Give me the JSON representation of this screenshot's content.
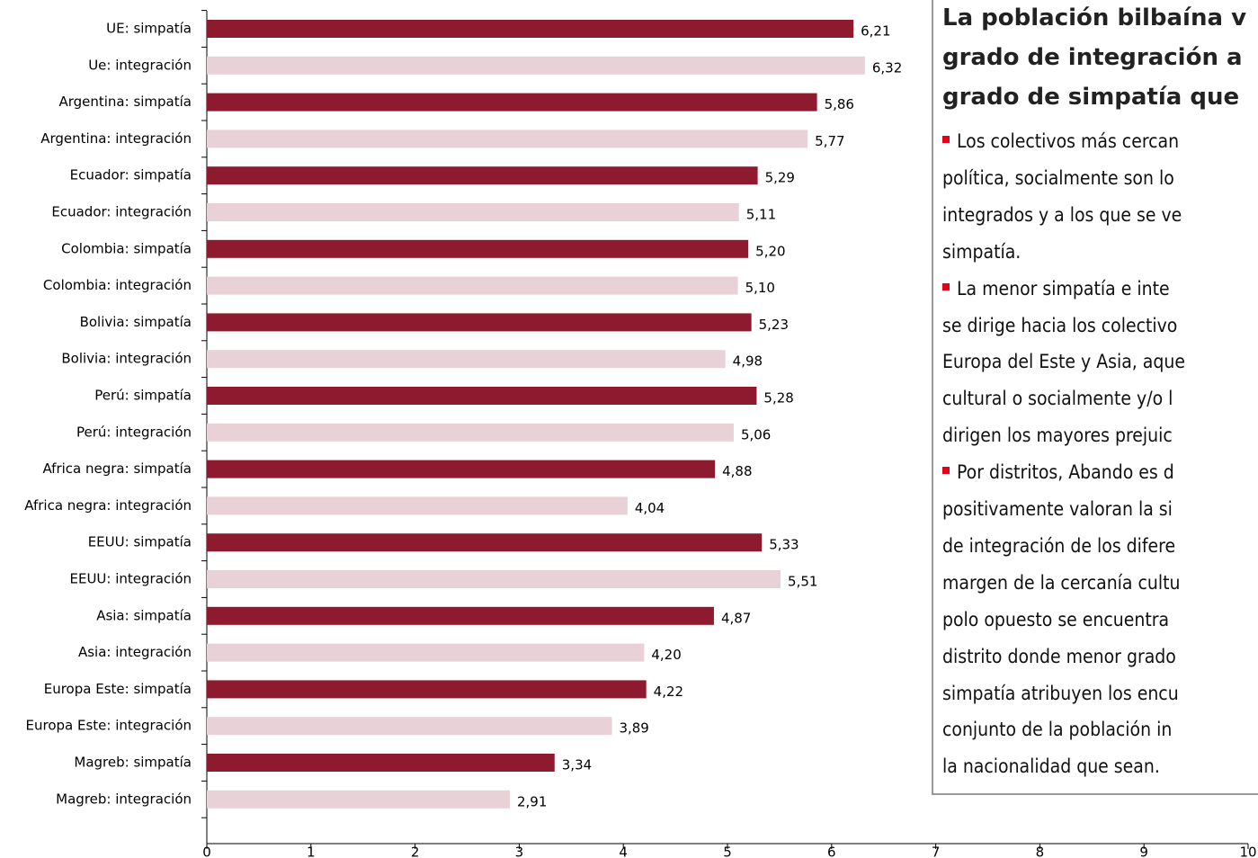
{
  "chart_data": {
    "type": "bar",
    "orientation": "horizontal",
    "categories": [
      "UE: simpatía",
      "Ue: integración",
      "Argentina: simpatía",
      "Argentina: integración",
      "Ecuador: simpatía",
      "Ecuador: integración",
      "Colombia: simpatía",
      "Colombia: integración",
      "Bolivia: simpatía",
      "Bolivia: integración",
      "Perú: simpatía",
      "Perú: integración",
      "Africa negra: simpatía",
      "Africa negra: integración",
      "EEUU: simpatía",
      "EEUU: integración",
      "Asia: simpatía",
      "Asia: integración",
      "Europa Este: simpatía",
      "Europa Este: integración",
      "Magreb: simpatía",
      "Magreb: integración"
    ],
    "values": [
      6.21,
      6.32,
      5.86,
      5.77,
      5.29,
      5.11,
      5.2,
      5.1,
      5.23,
      4.98,
      5.28,
      5.06,
      4.88,
      4.04,
      5.33,
      5.51,
      4.87,
      4.2,
      4.22,
      3.89,
      3.34,
      2.91
    ],
    "value_labels": [
      "6,21",
      "6,32",
      "5,86",
      "5,77",
      "5,29",
      "5,11",
      "5,20",
      "5,10",
      "5,23",
      "4,98",
      "5,28",
      "5,06",
      "4,88",
      "4,04",
      "5,33",
      "5,51",
      "4,87",
      "4,20",
      "4,22",
      "3,89",
      "3,34",
      "2,91"
    ],
    "colors": [
      "#8e1a2f",
      "#e9d2d7"
    ],
    "xlim": [
      0,
      10
    ],
    "xticks": [
      0,
      1,
      2,
      3,
      4,
      5,
      6,
      7,
      8,
      9,
      10
    ]
  },
  "textbox": {
    "title_lines": [
      "La población bilbaína v",
      "grado de integración a",
      "grado de simpatía que"
    ],
    "bullets": [
      [
        "Los colectivos más cercan",
        "política, socialmente son lo",
        "integrados y a los que se ve",
        "simpatía."
      ],
      [
        "La menor simpatía e inte",
        "se dirige hacia los colectivo",
        "Europa del Este y Asia, aque",
        "cultural o socialmente y/o l",
        "dirigen los mayores prejuic"
      ],
      [
        "Por distritos, Abando es d",
        "positivamente valoran la si",
        "de integración de los difere",
        "margen de la cercanía cultu",
        "polo opuesto se encuentra",
        "distrito donde menor grado",
        "simpatía atribuyen los encu",
        "conjunto de la población in",
        "la nacionalidad que sean."
      ]
    ]
  }
}
